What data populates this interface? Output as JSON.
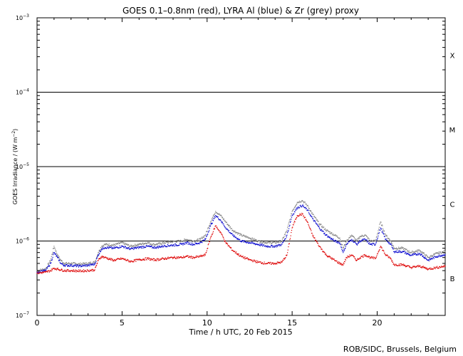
{
  "chart_data": {
    "type": "line",
    "title": "GOES 0.1–0.8nm (red), LYRA Al (blue) & Zr (grey) proxy",
    "xlabel": "Time / h UTC, 20 Feb 2015",
    "ylabel_main": "GOES Irradiance / (W m",
    "ylabel_sup": "−2",
    "ylabel_close": ")",
    "footer": "ROB/SIDC, Brussels, Belgium",
    "y_scale": "log",
    "xlim": [
      0,
      24
    ],
    "ylim": [
      1e-07,
      0.001
    ],
    "x_ticks": [
      {
        "v": 0,
        "label": "0"
      },
      {
        "v": 5,
        "label": "5"
      },
      {
        "v": 10,
        "label": "10"
      },
      {
        "v": 15,
        "label": "15"
      },
      {
        "v": 20,
        "label": "20"
      }
    ],
    "y_ticks": [
      {
        "exp": -3,
        "base": "10",
        "sup": "−3"
      },
      {
        "exp": -4,
        "base": "10",
        "sup": "−4"
      },
      {
        "exp": -5,
        "base": "10",
        "sup": "−5"
      },
      {
        "exp": -6,
        "base": "10",
        "sup": "−6"
      },
      {
        "exp": -7,
        "base": "10",
        "sup": "−7"
      }
    ],
    "flare_class_lines": [
      0.0001,
      1e-05,
      1e-06
    ],
    "flare_classes": [
      {
        "label": "X",
        "log_center": -3.5
      },
      {
        "label": "M",
        "log_center": -4.5
      },
      {
        "label": "C",
        "log_center": -5.5
      },
      {
        "label": "B",
        "log_center": -6.5
      }
    ],
    "series": [
      {
        "name": "Zr proxy",
        "color": "#808080",
        "x": [
          0,
          0.5,
          0.8,
          1.0,
          1.2,
          1.4,
          1.6,
          2.0,
          2.5,
          3.0,
          3.4,
          3.6,
          3.8,
          4.0,
          4.5,
          5.0,
          5.5,
          6.0,
          6.5,
          6.8,
          7.0,
          7.5,
          8.0,
          8.5,
          8.8,
          9.2,
          9.6,
          9.9,
          10.2,
          10.5,
          10.8,
          11.1,
          11.5,
          12.0,
          12.5,
          13.0,
          13.5,
          14.0,
          14.4,
          14.7,
          15.0,
          15.3,
          15.6,
          15.9,
          16.2,
          16.6,
          17.0,
          17.5,
          17.8,
          18.0,
          18.2,
          18.5,
          18.8,
          19.0,
          19.3,
          19.6,
          19.9,
          20.2,
          20.5,
          20.8,
          21.0,
          21.5,
          22.0,
          22.5,
          23.0,
          23.5,
          24.0
        ],
        "y": [
          4e-07,
          4.2e-07,
          5.5e-07,
          8.5e-07,
          6.5e-07,
          5.5e-07,
          5e-07,
          5e-07,
          4.9e-07,
          5e-07,
          5.2e-07,
          7e-07,
          8.5e-07,
          9e-07,
          8.8e-07,
          9.5e-07,
          8.5e-07,
          9e-07,
          9.5e-07,
          9e-07,
          9e-07,
          9.5e-07,
          9.8e-07,
          1e-06,
          1.05e-06,
          1e-06,
          1.05e-06,
          1.2e-06,
          1.8e-06,
          2.5e-06,
          2.2e-06,
          1.8e-06,
          1.4e-06,
          1.2e-06,
          1.1e-06,
          1e-06,
          9.5e-07,
          9.5e-07,
          1e-06,
          1.4e-06,
          2.5e-06,
          3.3e-06,
          3.5e-06,
          3e-06,
          2.3e-06,
          1.7e-06,
          1.4e-06,
          1.2e-06,
          1.1e-06,
          8e-07,
          1e-06,
          1.2e-06,
          1e-06,
          1.15e-06,
          1.2e-06,
          1e-06,
          1e-06,
          1.8e-06,
          1.2e-06,
          1e-06,
          8e-07,
          8e-07,
          7e-07,
          7.5e-07,
          6e-07,
          6.8e-07,
          7.2e-07
        ]
      },
      {
        "name": "Al proxy",
        "color": "#0000cc",
        "x": [
          0,
          0.5,
          0.8,
          1.0,
          1.2,
          1.4,
          1.6,
          2.0,
          2.5,
          3.0,
          3.4,
          3.6,
          3.8,
          4.0,
          4.5,
          5.0,
          5.5,
          6.0,
          6.5,
          6.8,
          7.0,
          7.5,
          8.0,
          8.5,
          8.8,
          9.2,
          9.6,
          9.9,
          10.2,
          10.5,
          10.8,
          11.1,
          11.5,
          12.0,
          12.5,
          13.0,
          13.5,
          14.0,
          14.4,
          14.7,
          15.0,
          15.3,
          15.6,
          15.9,
          16.2,
          16.6,
          17.0,
          17.5,
          17.8,
          18.0,
          18.2,
          18.5,
          18.8,
          19.0,
          19.3,
          19.6,
          19.9,
          20.2,
          20.5,
          20.8,
          21.0,
          21.5,
          22.0,
          22.5,
          23.0,
          23.5,
          24.0
        ],
        "y": [
          3.8e-07,
          4e-07,
          5e-07,
          7e-07,
          6e-07,
          5e-07,
          4.7e-07,
          4.7e-07,
          4.6e-07,
          4.7e-07,
          4.9e-07,
          6.5e-07,
          7.8e-07,
          8.2e-07,
          8e-07,
          8.5e-07,
          7.8e-07,
          8.2e-07,
          8.5e-07,
          8.2e-07,
          8.2e-07,
          8.6e-07,
          8.8e-07,
          9e-07,
          9.5e-07,
          9e-07,
          9.5e-07,
          1.05e-06,
          1.6e-06,
          2.2e-06,
          1.9e-06,
          1.5e-06,
          1.2e-06,
          1e-06,
          9.5e-07,
          9e-07,
          8.5e-07,
          8.5e-07,
          9e-07,
          1.2e-06,
          2.2e-06,
          2.8e-06,
          3e-06,
          2.6e-06,
          2e-06,
          1.5e-06,
          1.2e-06,
          1e-06,
          9.5e-07,
          7e-07,
          9e-07,
          1.05e-06,
          9e-07,
          1e-06,
          1.05e-06,
          9e-07,
          9e-07,
          1.5e-06,
          1.05e-06,
          9e-07,
          7.2e-07,
          7.2e-07,
          6.4e-07,
          6.8e-07,
          5.5e-07,
          6.2e-07,
          6.6e-07
        ]
      },
      {
        "name": "GOES 0.1–0.8nm",
        "color": "#dd0000",
        "x": [
          0,
          0.5,
          0.8,
          1.0,
          1.2,
          1.4,
          1.6,
          2.0,
          2.5,
          3.0,
          3.4,
          3.6,
          3.8,
          4.0,
          4.5,
          5.0,
          5.5,
          6.0,
          6.5,
          6.8,
          7.0,
          7.5,
          8.0,
          8.5,
          8.8,
          9.2,
          9.6,
          9.9,
          10.2,
          10.5,
          10.8,
          11.1,
          11.5,
          12.0,
          12.5,
          13.0,
          13.5,
          14.0,
          14.4,
          14.7,
          15.0,
          15.3,
          15.6,
          15.9,
          16.2,
          16.6,
          17.0,
          17.5,
          17.8,
          18.0,
          18.2,
          18.5,
          18.8,
          19.0,
          19.3,
          19.6,
          19.9,
          20.2,
          20.5,
          20.8,
          21.0,
          21.5,
          22.0,
          22.5,
          23.0,
          23.5,
          24.0
        ],
        "y": [
          3.7e-07,
          3.8e-07,
          4e-07,
          4.3e-07,
          4.2e-07,
          4.1e-07,
          4e-07,
          4e-07,
          3.95e-07,
          4e-07,
          4.1e-07,
          5.5e-07,
          6.2e-07,
          6e-07,
          5.5e-07,
          5.8e-07,
          5.3e-07,
          5.6e-07,
          5.8e-07,
          5.6e-07,
          5.6e-07,
          5.8e-07,
          6e-07,
          6e-07,
          6.2e-07,
          6e-07,
          6.2e-07,
          6.5e-07,
          1.1e-06,
          1.6e-06,
          1.3e-06,
          9.5e-07,
          7.5e-07,
          6.2e-07,
          5.6e-07,
          5.2e-07,
          5e-07,
          5e-07,
          5.2e-07,
          6.5e-07,
          1.5e-06,
          2.2e-06,
          2.3e-06,
          1.8e-06,
          1.2e-06,
          8.5e-07,
          6.5e-07,
          5.5e-07,
          5e-07,
          4.8e-07,
          6e-07,
          6.5e-07,
          5.5e-07,
          6e-07,
          6.5e-07,
          6e-07,
          5.8e-07,
          8.5e-07,
          6.5e-07,
          5.8e-07,
          4.8e-07,
          4.8e-07,
          4.4e-07,
          4.6e-07,
          4.2e-07,
          4.4e-07,
          4.6e-07
        ]
      }
    ]
  }
}
